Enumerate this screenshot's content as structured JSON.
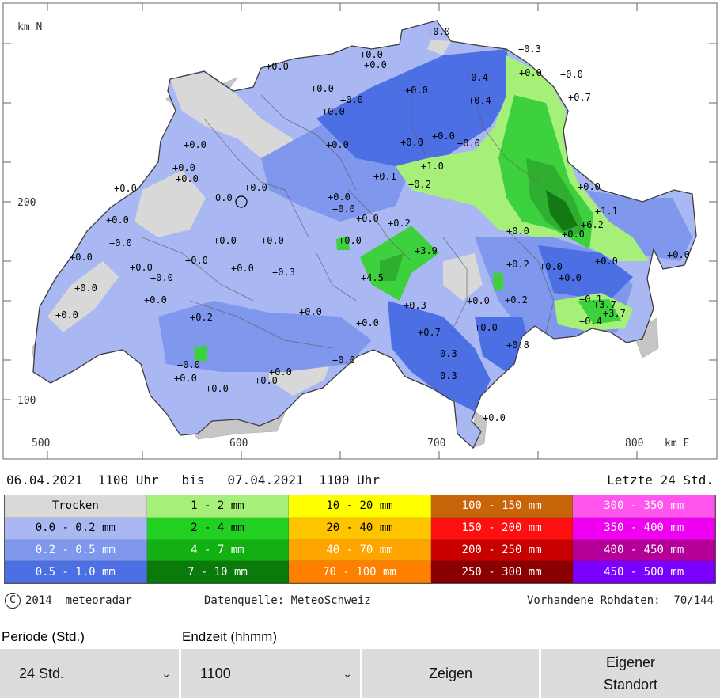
{
  "map": {
    "axis": {
      "north_label": "km N",
      "east_label": "km E",
      "y_ticks": [
        "200",
        "100"
      ],
      "x_ticks": [
        "500",
        "600",
        "700",
        "800"
      ]
    },
    "colors": {
      "dry": "#d8d8d8",
      "c0_02": "#a9b8f2",
      "c02_05": "#7f97ec",
      "c05_10": "#4d6fe4",
      "c1_2": "#a6f07a",
      "c2_4": "#3ed13e",
      "c4_7": "#2fae2f",
      "c7_10": "#137a13"
    },
    "stations": [
      {
        "v": "+0.0",
        "lx": 540,
        "ly": 44
      },
      {
        "v": "+0.3",
        "lx": 655,
        "ly": 66
      },
      {
        "v": "+0.0",
        "lx": 455,
        "ly": 73
      },
      {
        "v": "+0.0",
        "lx": 460,
        "ly": 86
      },
      {
        "v": "+0.0",
        "lx": 336,
        "ly": 88
      },
      {
        "v": "+0.0",
        "lx": 656,
        "ly": 96
      },
      {
        "v": "+0.0",
        "lx": 708,
        "ly": 98
      },
      {
        "v": "+0.4",
        "lx": 588,
        "ly": 102
      },
      {
        "v": "+0.0",
        "lx": 393,
        "ly": 116
      },
      {
        "v": "+0.0",
        "lx": 512,
        "ly": 118
      },
      {
        "v": "+0.7",
        "lx": 718,
        "ly": 127
      },
      {
        "v": "+0.4",
        "lx": 592,
        "ly": 131
      },
      {
        "v": "+0.0",
        "lx": 430,
        "ly": 130
      },
      {
        "v": "+0.0",
        "lx": 407,
        "ly": 145
      },
      {
        "v": "+0.0",
        "lx": 546,
        "ly": 176
      },
      {
        "v": "+0.0",
        "lx": 506,
        "ly": 184
      },
      {
        "v": "+0.0",
        "lx": 578,
        "ly": 185
      },
      {
        "v": "+0.0",
        "lx": 232,
        "ly": 187
      },
      {
        "v": "+0.0",
        "lx": 412,
        "ly": 187
      },
      {
        "v": "+1.0",
        "lx": 532,
        "ly": 214
      },
      {
        "v": "+0.0",
        "lx": 218,
        "ly": 216
      },
      {
        "v": "+0.0",
        "lx": 222,
        "ly": 230
      },
      {
        "v": "+0.1",
        "lx": 472,
        "ly": 227
      },
      {
        "v": "+0.2",
        "lx": 516,
        "ly": 237
      },
      {
        "v": "+0.0",
        "lx": 730,
        "ly": 240
      },
      {
        "v": "+0.0",
        "lx": 144,
        "ly": 242
      },
      {
        "v": "+0.0",
        "lx": 309,
        "ly": 241
      },
      {
        "v": "+0.0",
        "lx": 414,
        "ly": 253
      },
      {
        "v": "+0.0",
        "lx": 420,
        "ly": 268
      },
      {
        "v": "+1.1",
        "lx": 752,
        "ly": 271
      },
      {
        "v": "+0.0",
        "lx": 450,
        "ly": 280
      },
      {
        "v": "+0.2",
        "lx": 490,
        "ly": 286
      },
      {
        "v": "+6.2",
        "lx": 734,
        "ly": 288
      },
      {
        "v": "+0.0",
        "lx": 134,
        "ly": 282
      },
      {
        "v": "+0.0",
        "lx": 640,
        "ly": 296
      },
      {
        "v": "+0.0",
        "lx": 710,
        "ly": 300
      },
      {
        "v": "+0.0",
        "lx": 270,
        "ly": 308
      },
      {
        "v": "+0.0",
        "lx": 330,
        "ly": 308
      },
      {
        "v": "+0.0",
        "lx": 428,
        "ly": 308
      },
      {
        "v": "+0.0",
        "lx": 138,
        "ly": 311
      },
      {
        "v": "+3.9",
        "lx": 524,
        "ly": 321
      },
      {
        "v": "+0.0",
        "lx": 843,
        "ly": 326
      },
      {
        "v": "+0.0",
        "lx": 88,
        "ly": 329
      },
      {
        "v": "+0.0",
        "lx": 752,
        "ly": 334
      },
      {
        "v": "+0.0",
        "lx": 234,
        "ly": 333
      },
      {
        "v": "+0.2",
        "lx": 640,
        "ly": 338
      },
      {
        "v": "+0.0",
        "lx": 682,
        "ly": 341
      },
      {
        "v": "+0.0",
        "lx": 164,
        "ly": 342
      },
      {
        "v": "+0.0",
        "lx": 292,
        "ly": 343
      },
      {
        "v": "+0.3",
        "lx": 344,
        "ly": 348
      },
      {
        "v": "+4.5",
        "lx": 456,
        "ly": 355
      },
      {
        "v": "+0.0",
        "lx": 190,
        "ly": 355
      },
      {
        "v": "+0.0",
        "lx": 706,
        "ly": 355
      },
      {
        "v": "+0.0",
        "lx": 94,
        "ly": 368
      },
      {
        "v": "+0.1",
        "lx": 732,
        "ly": 382
      },
      {
        "v": "+0.0",
        "lx": 182,
        "ly": 383
      },
      {
        "v": "+0.0",
        "lx": 590,
        "ly": 384
      },
      {
        "v": "+0.2",
        "lx": 638,
        "ly": 383
      },
      {
        "v": "+0.3",
        "lx": 510,
        "ly": 390
      },
      {
        "v": "+3.7",
        "lx": 750,
        "ly": 389
      },
      {
        "v": "+3.7",
        "lx": 762,
        "ly": 400
      },
      {
        "v": "+0.0",
        "lx": 378,
        "ly": 398
      },
      {
        "v": "+0.0",
        "lx": 70,
        "ly": 402
      },
      {
        "v": "+0.2",
        "lx": 240,
        "ly": 405
      },
      {
        "v": "+0.4",
        "lx": 732,
        "ly": 410
      },
      {
        "v": "+0.0",
        "lx": 450,
        "ly": 412
      },
      {
        "v": "+0.0",
        "lx": 600,
        "ly": 418
      },
      {
        "v": "+0.7",
        "lx": 528,
        "ly": 424
      },
      {
        "v": "+0.8",
        "lx": 640,
        "ly": 440
      },
      {
        "v": "+0.0",
        "lx": 420,
        "ly": 459
      },
      {
        "v": "+0.0",
        "lx": 224,
        "ly": 465
      },
      {
        "v": "+0.0",
        "lx": 340,
        "ly": 474
      },
      {
        "v": "+0.0",
        "lx": 220,
        "ly": 482
      },
      {
        "v": "+0.0",
        "lx": 322,
        "ly": 485
      },
      {
        "v": "+0.0",
        "lx": 260,
        "ly": 495
      },
      {
        "v": "+0.0",
        "lx": 610,
        "ly": 532
      }
    ],
    "mono_labels": [
      {
        "v": "0.0",
        "lx": 272,
        "ly": 254
      },
      {
        "v": "0.3",
        "lx": 556,
        "ly": 451
      },
      {
        "v": "0.3",
        "lx": 556,
        "ly": 479
      }
    ]
  },
  "period": {
    "left": "06.04.2021  1100 Uhr   bis   07.04.2021  1100 Uhr",
    "right": "Letzte 24 Std."
  },
  "legend": [
    {
      "label": "Trocken",
      "bg": "#d9d9d9",
      "fg": "#000000"
    },
    {
      "label": "1 - 2 mm",
      "bg": "#a6f07a",
      "fg": "#000000"
    },
    {
      "label": "10 - 20 mm",
      "bg": "#ffff00",
      "fg": "#000000"
    },
    {
      "label": "100 - 150 mm",
      "bg": "#c8640a",
      "fg": "#ffffff"
    },
    {
      "label": "300 - 350 mm",
      "bg": "#ff55ee",
      "fg": "#ffffff"
    },
    {
      "label": "0.0 - 0.2 mm",
      "bg": "#a9b8f2",
      "fg": "#000000"
    },
    {
      "label": "2 - 4 mm",
      "bg": "#22d022",
      "fg": "#000000"
    },
    {
      "label": "20 - 40 mm",
      "bg": "#ffc400",
      "fg": "#000000"
    },
    {
      "label": "150 - 200 mm",
      "bg": "#ff1010",
      "fg": "#ffffff"
    },
    {
      "label": "350 - 400 mm",
      "bg": "#f000f0",
      "fg": "#ffffff"
    },
    {
      "label": "0.2 - 0.5 mm",
      "bg": "#7f97ec",
      "fg": "#ffffff"
    },
    {
      "label": "4 - 7 mm",
      "bg": "#12b012",
      "fg": "#ffffff"
    },
    {
      "label": "40 - 70 mm",
      "bg": "#ffa500",
      "fg": "#ffffff"
    },
    {
      "label": "200 - 250 mm",
      "bg": "#c80000",
      "fg": "#ffffff"
    },
    {
      "label": "400 - 450 mm",
      "bg": "#b40098",
      "fg": "#ffffff"
    },
    {
      "label": "0.5 - 1.0 mm",
      "bg": "#4d6fe4",
      "fg": "#ffffff"
    },
    {
      "label": "7 - 10 mm",
      "bg": "#0a7a0a",
      "fg": "#ffffff"
    },
    {
      "label": "70 - 100 mm",
      "bg": "#ff7f00",
      "fg": "#ffffff"
    },
    {
      "label": "250 - 300 mm",
      "bg": "#8a0000",
      "fg": "#ffffff"
    },
    {
      "label": "450 - 500 mm",
      "bg": "#7a00ff",
      "fg": "#ffffff"
    }
  ],
  "credits": {
    "copyright_symbol": "C",
    "copyright": "2014  meteoradar",
    "source": "Datenquelle: MeteoSchweiz",
    "raw": "Vorhandene Rohdaten:  70/144"
  },
  "controls": {
    "period_label": "Periode (Std.)",
    "period_value": "24 Std.",
    "end_label": "Endzeit (hhmm)",
    "end_value": "1100",
    "show_button": "Zeigen",
    "location_line1": "Eigener",
    "location_line2": "Standort",
    "chevron": "⌄"
  }
}
